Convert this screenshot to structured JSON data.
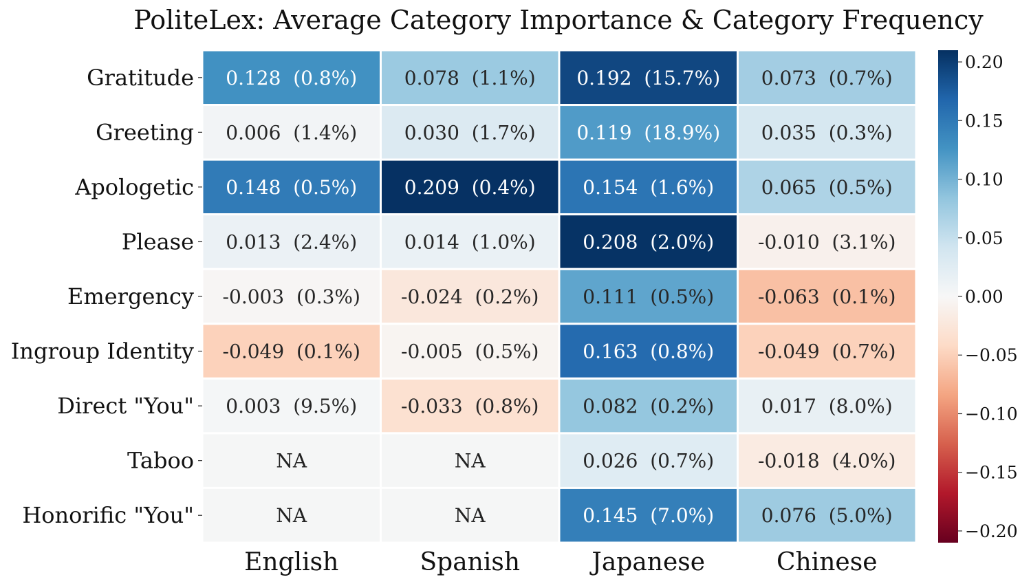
{
  "chart_data": {
    "type": "heatmap",
    "title": "PoliteLex: Average Category Importance & Category Frequency",
    "columns": [
      "English",
      "Spanish",
      "Japanese",
      "Chinese"
    ],
    "rows": [
      "Gratitude",
      "Greeting",
      "Apologetic",
      "Please",
      "Emergency",
      "Ingroup Identity",
      "Direct \"You\"",
      "Taboo",
      "Honorific \"You\""
    ],
    "values": [
      [
        0.128,
        0.078,
        0.192,
        0.073
      ],
      [
        0.006,
        0.03,
        0.119,
        0.035
      ],
      [
        0.148,
        0.209,
        0.154,
        0.065
      ],
      [
        0.013,
        0.014,
        0.208,
        -0.01
      ],
      [
        -0.003,
        -0.024,
        0.111,
        -0.063
      ],
      [
        -0.049,
        -0.005,
        0.163,
        -0.049
      ],
      [
        0.003,
        -0.033,
        0.082,
        0.017
      ],
      [
        null,
        null,
        0.026,
        -0.018
      ],
      [
        null,
        null,
        0.145,
        0.076
      ]
    ],
    "labels": [
      [
        "0.128  (0.8%)",
        "0.078  (1.1%)",
        "0.192  (15.7%)",
        "0.073  (0.7%)"
      ],
      [
        "0.006  (1.4%)",
        "0.030  (1.7%)",
        "0.119  (18.9%)",
        "0.035  (0.3%)"
      ],
      [
        "0.148  (0.5%)",
        "0.209  (0.4%)",
        "0.154  (1.6%)",
        "0.065  (0.5%)"
      ],
      [
        "0.013  (2.4%)",
        "0.014  (1.0%)",
        "0.208  (2.0%)",
        "-0.010  (3.1%)"
      ],
      [
        "-0.003  (0.3%)",
        "-0.024  (0.2%)",
        "0.111  (0.5%)",
        "-0.063  (0.1%)"
      ],
      [
        "-0.049  (0.1%)",
        "-0.005  (0.5%)",
        "0.163  (0.8%)",
        "-0.049  (0.7%)"
      ],
      [
        "0.003  (9.5%)",
        "-0.033  (0.8%)",
        "0.082  (0.2%)",
        "0.017  (8.0%)"
      ],
      [
        "NA",
        "NA",
        "0.026  (0.7%)",
        "-0.018  (4.0%)"
      ],
      [
        "NA",
        "NA",
        "0.145  (7.0%)",
        "0.076  (5.0%)"
      ]
    ],
    "colormap": "RdBu",
    "vmin": -0.21,
    "vmax": 0.21,
    "colorbar_ticks": [
      0.2,
      0.15,
      0.1,
      0.05,
      0.0,
      -0.05,
      -0.1,
      -0.15,
      -0.2
    ],
    "colorbar_tick_labels": [
      "0.20",
      "0.15",
      "0.10",
      "0.05",
      "0.00",
      "−0.05",
      "−0.10",
      "−0.15",
      "−0.20"
    ],
    "na_color": "#f5f6f6",
    "grid_line_color": "#ffffff"
  }
}
